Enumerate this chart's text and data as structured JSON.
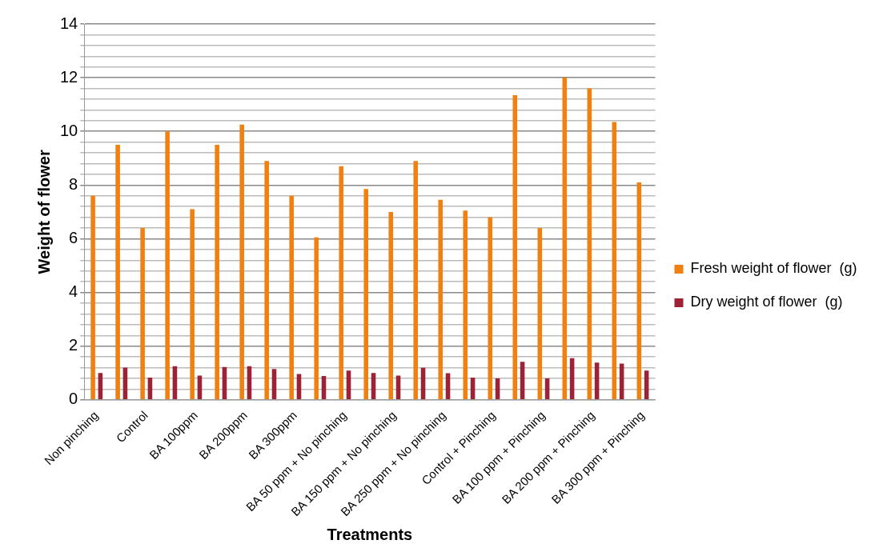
{
  "chart_data": {
    "type": "bar",
    "xlabel": "Treatments",
    "ylabel": "Weight of flower",
    "categories": [
      "Non pinching",
      null,
      "Control",
      null,
      "BA 100ppm",
      null,
      "BA 200ppm",
      null,
      "BA 300ppm",
      null,
      "BA 50 ppm + No pinching",
      null,
      "BA 150 ppm + No pinching",
      null,
      "BA 250 ppm + No pinching",
      null,
      "Control + Pinching",
      null,
      "BA 100 ppm + Pinching",
      null,
      "BA 200 ppm + Pinching",
      null,
      "BA 300 ppm + Pinching"
    ],
    "series": [
      {
        "name": "Fresh weight of flower  (g)",
        "color": "#f08010",
        "values": [
          7.6,
          9.5,
          6.4,
          10.0,
          7.1,
          9.5,
          10.25,
          8.9,
          7.6,
          6.05,
          8.7,
          7.85,
          7.0,
          8.9,
          7.45,
          7.05,
          6.8,
          11.35,
          6.4,
          12.0,
          11.6,
          10.35,
          8.1
        ]
      },
      {
        "name": "Dry weight of flower  (g)",
        "color": "#9b2335",
        "values": [
          1.0,
          1.2,
          0.83,
          1.25,
          0.9,
          1.22,
          1.25,
          1.15,
          0.96,
          0.89,
          1.09,
          1.0,
          0.9,
          1.19,
          0.99,
          0.83,
          0.8,
          1.42,
          0.8,
          1.55,
          1.39,
          1.35,
          1.09
        ]
      }
    ],
    "ylim": [
      0,
      14
    ],
    "yticks": [
      0,
      {
        "value": 0.4,
        "label": null
      },
      {
        "value": 0.8,
        "label": null
      },
      {
        "value": 1.2,
        "label": null
      },
      {
        "value": 1.6,
        "label": null
      },
      2,
      {
        "value": 2.4,
        "label": null
      },
      {
        "value": 2.8,
        "label": null
      },
      {
        "value": 3.2,
        "label": null
      },
      {
        "value": 3.6,
        "label": null
      },
      4,
      {
        "value": 4.4,
        "label": null
      },
      {
        "value": 4.8,
        "label": null
      },
      {
        "value": 5.2,
        "label": null
      },
      {
        "value": 5.6,
        "label": null
      },
      6,
      {
        "value": 6.4,
        "label": null
      },
      {
        "value": 6.8,
        "label": null
      },
      {
        "value": 7.2,
        "label": null
      },
      {
        "value": 7.6,
        "label": null
      },
      8,
      {
        "value": 8.4,
        "label": null
      },
      {
        "value": 8.8,
        "label": null
      },
      {
        "value": 9.2,
        "label": null
      },
      {
        "value": 9.6,
        "label": null
      },
      10,
      {
        "value": 10.4,
        "label": null
      },
      {
        "value": 10.8,
        "label": null
      },
      {
        "value": 11.2,
        "label": null
      },
      {
        "value": 11.6,
        "label": null
      },
      12,
      {
        "value": 12.4,
        "label": null
      },
      {
        "value": 12.8,
        "label": null
      },
      {
        "value": 13.2,
        "label": null
      },
      {
        "value": 13.6,
        "label": null
      },
      14
    ],
    "grid": "y",
    "legend": "right"
  }
}
